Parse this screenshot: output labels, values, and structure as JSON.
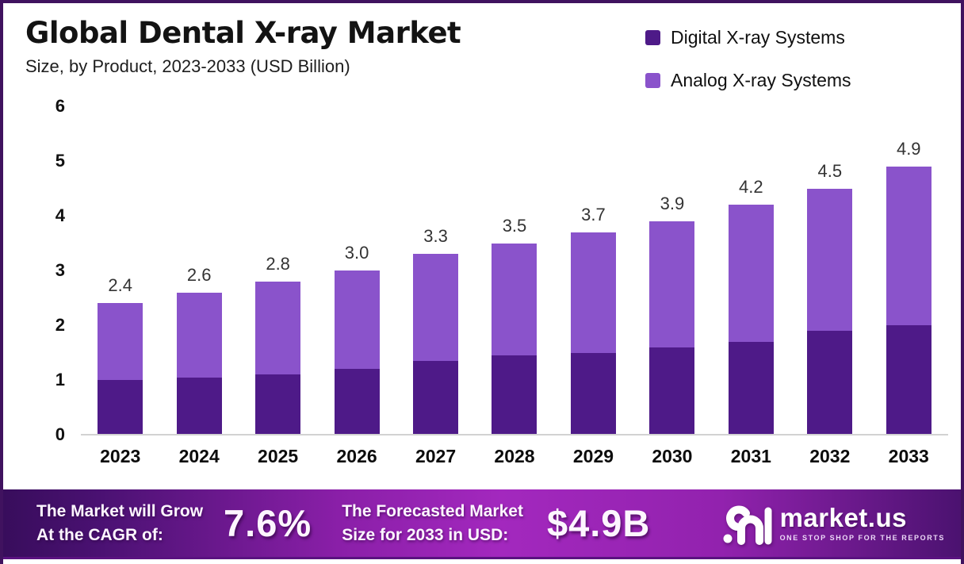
{
  "header": {
    "title": "Global Dental X-ray Market",
    "subtitle": "Size, by Product, 2023-2033 (USD Billion)"
  },
  "legend": [
    {
      "label": "Digital X-ray Systems",
      "color": "#4e1a88"
    },
    {
      "label": "Analog X-ray Systems",
      "color": "#8a53cb"
    }
  ],
  "chart_data": {
    "type": "bar",
    "stacked": true,
    "title": "Global Dental X-ray Market Size, by Product, 2023-2033 (USD Billion)",
    "categories": [
      "2023",
      "2024",
      "2025",
      "2026",
      "2027",
      "2028",
      "2029",
      "2030",
      "2031",
      "2032",
      "2033"
    ],
    "series": [
      {
        "name": "Digital X-ray Systems",
        "color": "#4e1a88",
        "values": [
          1.0,
          1.05,
          1.1,
          1.2,
          1.35,
          1.45,
          1.5,
          1.6,
          1.7,
          1.9,
          2.0
        ]
      },
      {
        "name": "Analog X-ray Systems",
        "color": "#8a53cb",
        "values": [
          1.4,
          1.55,
          1.7,
          1.8,
          1.95,
          2.05,
          2.2,
          2.3,
          2.5,
          2.6,
          2.9
        ]
      }
    ],
    "totals": [
      2.4,
      2.6,
      2.8,
      3.0,
      3.3,
      3.5,
      3.7,
      3.9,
      4.2,
      4.5,
      4.9
    ],
    "total_labels": [
      "2.4",
      "2.6",
      "2.8",
      "3.0",
      "3.3",
      "3.5",
      "3.7",
      "3.9",
      "4.2",
      "4.5",
      "4.9"
    ],
    "xlabel": "",
    "ylabel": "",
    "ylim": [
      0,
      6
    ],
    "y_ticks": [
      0,
      1,
      2,
      3,
      4,
      5,
      6
    ],
    "grid": false,
    "legend_position": "top-right"
  },
  "banner": {
    "cagr_label_line1": "The Market will Grow",
    "cagr_label_line2": "At the CAGR of:",
    "cagr_value": "7.6%",
    "forecast_label_line1": "The Forecasted Market",
    "forecast_label_line2": "Size for 2033 in USD:",
    "forecast_value": "$4.9B",
    "logo_text": "market.us",
    "logo_tagline": "ONE STOP SHOP FOR THE REPORTS"
  }
}
